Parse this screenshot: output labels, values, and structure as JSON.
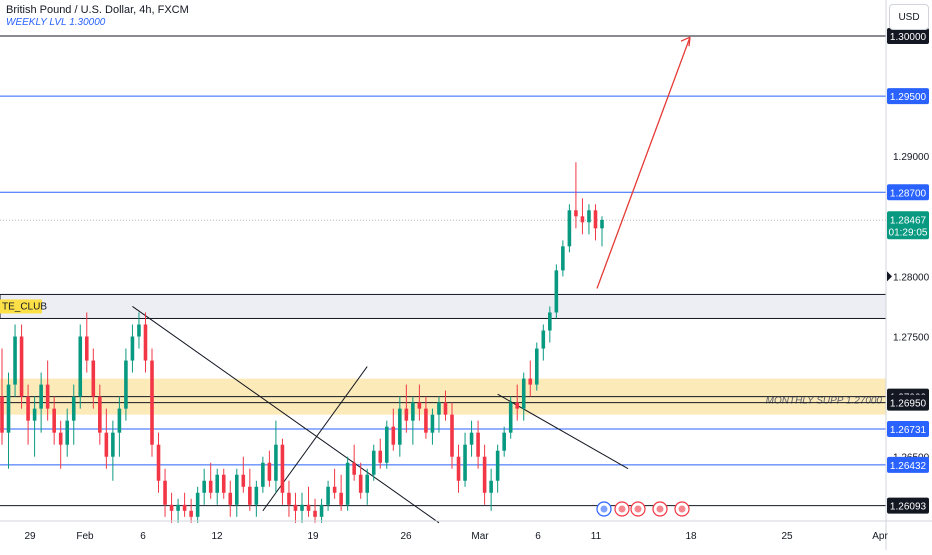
{
  "header": {
    "title": "British Pound / U.S. Dollar, 4h, FXCM",
    "subtitle": "WEEKLY LVL 1.30000"
  },
  "currency_button": "USD",
  "colors": {
    "up": "#089981",
    "down": "#f23645",
    "level": "#2962ff",
    "zone": "#fbe3a0",
    "arrow": "#e53935",
    "badge_blue": "#2962ff",
    "badge_dark": "#131722",
    "badge_green": "#089981"
  },
  "chart_data": {
    "type": "candlestick",
    "ylim": [
      1.26,
      1.3005
    ],
    "y_ticks": [
      "1.29000",
      "1.28000",
      "1.27500",
      "1.26500"
    ],
    "x_ticks": [
      "29",
      "Feb",
      "6",
      "12",
      "19",
      "26",
      "Mar",
      "6",
      "11",
      "18",
      "25",
      "Apr"
    ],
    "price_levels": [
      {
        "value": 1.3,
        "label": "1.30000",
        "style": "dark"
      },
      {
        "value": 1.295,
        "label": "1.29500",
        "style": "blue"
      },
      {
        "value": 1.287,
        "label": "1.28700",
        "style": "blue"
      },
      {
        "value": 1.27,
        "label": "1.27000",
        "style": "dark"
      },
      {
        "value": 1.2695,
        "label": "1.26950",
        "style": "dark"
      },
      {
        "value": 1.26731,
        "label": "1.26731",
        "style": "blue"
      },
      {
        "value": 1.26432,
        "label": "1.26432",
        "style": "blue"
      },
      {
        "value": 1.26093,
        "label": "1.26093",
        "style": "dark"
      }
    ],
    "current_price": {
      "value": 1.28467,
      "label": "1.28467",
      "countdown": "01:29:05"
    },
    "zones": [
      {
        "name": "grey-zone",
        "from": 1.2765,
        "to": 1.2785,
        "label": "TE_CLUB"
      },
      {
        "name": "monthly-support-zone",
        "from": 1.2685,
        "to": 1.2715,
        "label": "MONTHLY SUPP 1.27000"
      }
    ],
    "candles": [
      [
        1.27,
        1.274,
        1.266,
        1.267
      ],
      [
        1.267,
        1.272,
        1.264,
        1.271
      ],
      [
        1.271,
        1.276,
        1.27,
        1.275
      ],
      [
        1.275,
        1.276,
        1.269,
        1.27
      ],
      [
        1.27,
        1.271,
        1.266,
        1.268
      ],
      [
        1.268,
        1.27,
        1.265,
        1.269
      ],
      [
        1.269,
        1.272,
        1.267,
        1.271
      ],
      [
        1.271,
        1.273,
        1.268,
        1.269
      ],
      [
        1.269,
        1.27,
        1.266,
        1.267
      ],
      [
        1.267,
        1.268,
        1.264,
        1.266
      ],
      [
        1.266,
        1.269,
        1.265,
        1.268
      ],
      [
        1.268,
        1.271,
        1.266,
        1.27
      ],
      [
        1.27,
        1.276,
        1.269,
        1.275
      ],
      [
        1.275,
        1.277,
        1.272,
        1.273
      ],
      [
        1.273,
        1.274,
        1.269,
        1.27
      ],
      [
        1.27,
        1.271,
        1.266,
        1.267
      ],
      [
        1.267,
        1.269,
        1.264,
        1.265
      ],
      [
        1.265,
        1.268,
        1.263,
        1.267
      ],
      [
        1.267,
        1.27,
        1.265,
        1.269
      ],
      [
        1.269,
        1.274,
        1.268,
        1.273
      ],
      [
        1.273,
        1.276,
        1.272,
        1.275
      ],
      [
        1.275,
        1.277,
        1.274,
        1.276
      ],
      [
        1.276,
        1.277,
        1.272,
        1.273
      ],
      [
        1.273,
        1.274,
        1.265,
        1.266
      ],
      [
        1.266,
        1.267,
        1.262,
        1.263
      ],
      [
        1.263,
        1.264,
        1.26,
        1.261
      ],
      [
        1.261,
        1.262,
        1.2595,
        1.2605
      ],
      [
        1.2605,
        1.2615,
        1.2595,
        1.261
      ],
      [
        1.261,
        1.262,
        1.26,
        1.2605
      ],
      [
        1.2605,
        1.2615,
        1.2595,
        1.26
      ],
      [
        1.26,
        1.2625,
        1.2595,
        1.262
      ],
      [
        1.262,
        1.264,
        1.261,
        1.263
      ],
      [
        1.263,
        1.2645,
        1.2615,
        1.262
      ],
      [
        1.262,
        1.264,
        1.261,
        1.2635
      ],
      [
        1.2635,
        1.264,
        1.2615,
        1.262
      ],
      [
        1.262,
        1.263,
        1.26,
        1.261
      ],
      [
        1.261,
        1.264,
        1.26,
        1.2635
      ],
      [
        1.2635,
        1.265,
        1.262,
        1.2625
      ],
      [
        1.2625,
        1.264,
        1.2605,
        1.261
      ],
      [
        1.261,
        1.263,
        1.26,
        1.2625
      ],
      [
        1.2625,
        1.265,
        1.262,
        1.2645
      ],
      [
        1.2645,
        1.2655,
        1.2625,
        1.263
      ],
      [
        1.263,
        1.268,
        1.262,
        1.266
      ],
      [
        1.266,
        1.2665,
        1.261,
        1.262
      ],
      [
        1.262,
        1.263,
        1.26,
        1.261
      ],
      [
        1.261,
        1.262,
        1.2595,
        1.2605
      ],
      [
        1.2605,
        1.262,
        1.2595,
        1.261
      ],
      [
        1.261,
        1.2625,
        1.26,
        1.2605
      ],
      [
        1.2605,
        1.2615,
        1.2595,
        1.26
      ],
      [
        1.26,
        1.2615,
        1.2595,
        1.261
      ],
      [
        1.261,
        1.263,
        1.2605,
        1.2625
      ],
      [
        1.2625,
        1.264,
        1.2615,
        1.262
      ],
      [
        1.262,
        1.2635,
        1.2605,
        1.261
      ],
      [
        1.261,
        1.265,
        1.2605,
        1.2645
      ],
      [
        1.2645,
        1.266,
        1.263,
        1.2635
      ],
      [
        1.2635,
        1.2645,
        1.2615,
        1.262
      ],
      [
        1.262,
        1.264,
        1.261,
        1.2635
      ],
      [
        1.2635,
        1.266,
        1.263,
        1.2655
      ],
      [
        1.2655,
        1.2665,
        1.264,
        1.2645
      ],
      [
        1.2645,
        1.268,
        1.264,
        1.2675
      ],
      [
        1.2675,
        1.269,
        1.2655,
        1.266
      ],
      [
        1.266,
        1.27,
        1.265,
        1.269
      ],
      [
        1.269,
        1.271,
        1.267,
        1.268
      ],
      [
        1.268,
        1.27,
        1.266,
        1.2695
      ],
      [
        1.2695,
        1.271,
        1.268,
        1.269
      ],
      [
        1.269,
        1.27,
        1.2665,
        1.267
      ],
      [
        1.267,
        1.269,
        1.266,
        1.2685
      ],
      [
        1.2685,
        1.27,
        1.267,
        1.2695
      ],
      [
        1.2695,
        1.2705,
        1.268,
        1.2685
      ],
      [
        1.2685,
        1.2695,
        1.264,
        1.265
      ],
      [
        1.265,
        1.266,
        1.262,
        1.263
      ],
      [
        1.263,
        1.267,
        1.2625,
        1.266
      ],
      [
        1.266,
        1.268,
        1.265,
        1.267
      ],
      [
        1.267,
        1.268,
        1.264,
        1.265
      ],
      [
        1.265,
        1.266,
        1.261,
        1.262
      ],
      [
        1.262,
        1.264,
        1.2605,
        1.263
      ],
      [
        1.263,
        1.266,
        1.262,
        1.2655
      ],
      [
        1.2655,
        1.2675,
        1.265,
        1.267
      ],
      [
        1.267,
        1.27,
        1.2665,
        1.2695
      ],
      [
        1.2695,
        1.271,
        1.268,
        1.269
      ],
      [
        1.269,
        1.272,
        1.268,
        1.2715
      ],
      [
        1.2715,
        1.273,
        1.27,
        1.271
      ],
      [
        1.271,
        1.2745,
        1.2705,
        1.274
      ],
      [
        1.274,
        1.276,
        1.273,
        1.2755
      ],
      [
        1.2755,
        1.2775,
        1.2745,
        1.277
      ],
      [
        1.277,
        1.281,
        1.2765,
        1.2805
      ],
      [
        1.2805,
        1.283,
        1.28,
        1.2825
      ],
      [
        1.2825,
        1.286,
        1.282,
        1.2855
      ],
      [
        1.2855,
        1.2895,
        1.284,
        1.285
      ],
      [
        1.285,
        1.2865,
        1.2835,
        1.2845
      ],
      [
        1.2845,
        1.286,
        1.2835,
        1.2855
      ],
      [
        1.2855,
        1.286,
        1.283,
        1.284
      ],
      [
        1.284,
        1.285,
        1.2825,
        1.2847
      ]
    ]
  }
}
